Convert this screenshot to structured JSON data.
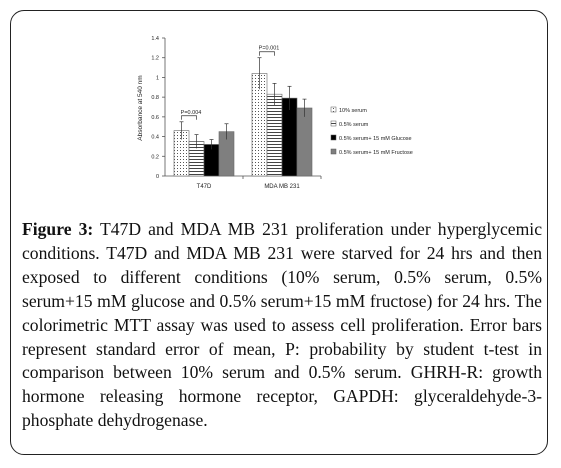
{
  "chart_data": {
    "type": "bar",
    "categories": [
      "T47D",
      "MDA MB 231"
    ],
    "ylabel": "Absorbance at 540 nm",
    "ylim": [
      0,
      1.4
    ],
    "yticks": [
      "0",
      "0.2",
      "0.4",
      "0.6",
      "0.8",
      "1",
      "1.2",
      "1.4"
    ],
    "grid": false,
    "legend_position": "right",
    "series": [
      {
        "name": "10% serum",
        "values": [
          0.46,
          1.04
        ],
        "errors": [
          0.09,
          0.16
        ],
        "fill": "dotted"
      },
      {
        "name": "0.5% serum",
        "values": [
          0.35,
          0.83
        ],
        "errors": [
          0.07,
          0.11
        ],
        "fill": "horizontal-lines"
      },
      {
        "name": "0.5% serum+ 15 mM Glucose",
        "values": [
          0.32,
          0.79
        ],
        "errors": [
          0.05,
          0.12
        ],
        "fill": "#000000"
      },
      {
        "name": "0.5% serum+ 15 mM Fructose",
        "values": [
          0.45,
          0.69
        ],
        "errors": [
          0.08,
          0.09
        ],
        "fill": "#7f7f7f"
      }
    ],
    "annotations": [
      {
        "text": "P=0.004",
        "category": "T47D",
        "between": [
          "10% serum",
          "0.5% serum"
        ]
      },
      {
        "text": "P=0.001",
        "category": "MDA MB 231",
        "between": [
          "10% serum",
          "0.5% serum"
        ]
      }
    ]
  },
  "caption": {
    "label": "Figure 3:",
    "text": " T47D and MDA MB 231 proliferation under hyperglycemic conditions. T47D and MDA MB 231 were starved for 24 hrs and then exposed to different conditions (10% serum, 0.5% serum, 0.5% serum+15 mM glucose and 0.5% serum+15 mM fructose) for 24 hrs. The colorimetric MTT assay was used to assess cell proliferation. Error bars represent standard error of mean, P: probability by student t-test in comparison between 10% serum and 0.5% serum. GHRH-R: growth hormone releasing hormone receptor, GAPDH: glyceraldehyde-3-phosphate dehydrogenase."
  }
}
